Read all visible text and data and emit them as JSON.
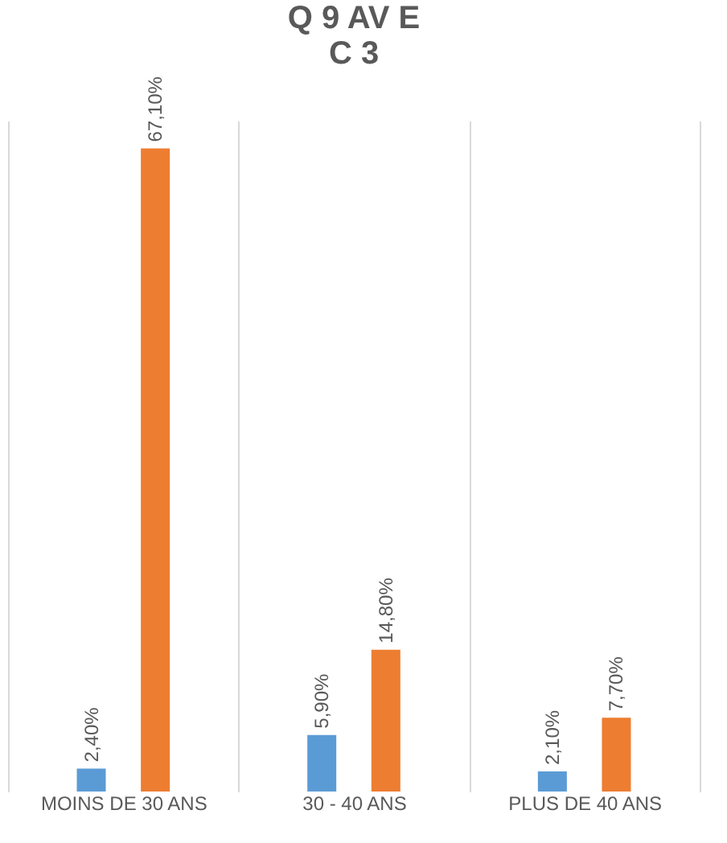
{
  "chart_data": {
    "type": "bar",
    "title": [
      "Q 9 AV E",
      "C 3"
    ],
    "categories": [
      "MOINS DE 30 ANS",
      "30 - 40 ANS",
      "PLUS DE 40 ANS"
    ],
    "series": [
      {
        "color": "#5b9bd5",
        "values": [
          2.4,
          5.9,
          2.1
        ],
        "value_labels": [
          "2,40%",
          "5,90%",
          "2,10%"
        ]
      },
      {
        "color": "#ed7d31",
        "values": [
          67.1,
          14.8,
          7.7
        ],
        "value_labels": [
          "67,10%",
          "14,80%",
          "7,70%"
        ]
      }
    ],
    "grid": "x"
  }
}
